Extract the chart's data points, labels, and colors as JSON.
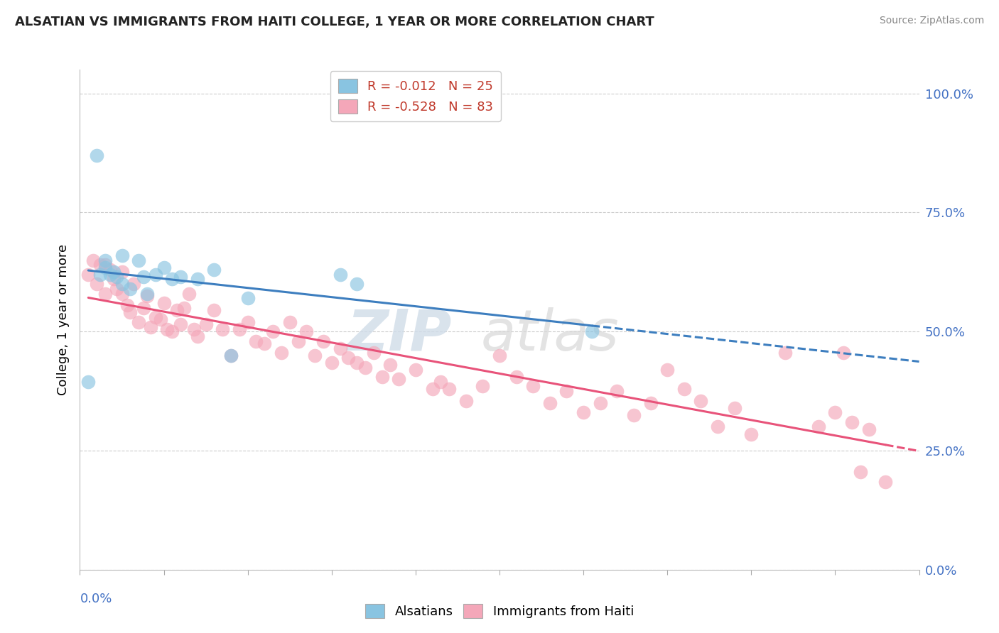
{
  "title": "ALSATIAN VS IMMIGRANTS FROM HAITI COLLEGE, 1 YEAR OR MORE CORRELATION CHART",
  "source": "Source: ZipAtlas.com",
  "ylabel": "College, 1 year or more",
  "right_yticks": [
    0.0,
    0.25,
    0.5,
    0.75,
    1.0
  ],
  "right_yticklabels": [
    "0.0%",
    "25.0%",
    "50.0%",
    "75.0%",
    "100.0%"
  ],
  "xlim": [
    0.0,
    0.5
  ],
  "ylim": [
    0.0,
    1.05
  ],
  "legend_entry1": "R = -0.012   N = 25",
  "legend_entry2": "R = -0.528   N = 83",
  "blue_color": "#89c4e1",
  "pink_color": "#f4a7b9",
  "blue_line_color": "#3d7ebf",
  "pink_line_color": "#e8537a",
  "alsatians_x": [
    0.005,
    0.01,
    0.012,
    0.015,
    0.015,
    0.018,
    0.02,
    0.022,
    0.025,
    0.025,
    0.03,
    0.035,
    0.038,
    0.04,
    0.045,
    0.05,
    0.055,
    0.06,
    0.07,
    0.08,
    0.09,
    0.1,
    0.155,
    0.165,
    0.305
  ],
  "alsatians_y": [
    0.395,
    0.87,
    0.62,
    0.635,
    0.65,
    0.62,
    0.625,
    0.615,
    0.6,
    0.66,
    0.59,
    0.65,
    0.615,
    0.58,
    0.62,
    0.635,
    0.61,
    0.615,
    0.61,
    0.63,
    0.45,
    0.57,
    0.62,
    0.6,
    0.5
  ],
  "haiti_x": [
    0.005,
    0.008,
    0.01,
    0.012,
    0.015,
    0.015,
    0.018,
    0.02,
    0.022,
    0.025,
    0.025,
    0.028,
    0.03,
    0.032,
    0.035,
    0.038,
    0.04,
    0.042,
    0.045,
    0.048,
    0.05,
    0.052,
    0.055,
    0.058,
    0.06,
    0.062,
    0.065,
    0.068,
    0.07,
    0.075,
    0.08,
    0.085,
    0.09,
    0.095,
    0.1,
    0.105,
    0.11,
    0.115,
    0.12,
    0.125,
    0.13,
    0.135,
    0.14,
    0.145,
    0.15,
    0.155,
    0.16,
    0.165,
    0.17,
    0.175,
    0.18,
    0.185,
    0.19,
    0.2,
    0.21,
    0.215,
    0.22,
    0.23,
    0.24,
    0.25,
    0.26,
    0.27,
    0.28,
    0.29,
    0.3,
    0.31,
    0.32,
    0.33,
    0.34,
    0.35,
    0.36,
    0.37,
    0.38,
    0.39,
    0.4,
    0.42,
    0.44,
    0.45,
    0.455,
    0.46,
    0.465,
    0.47,
    0.48
  ],
  "haiti_y": [
    0.62,
    0.65,
    0.6,
    0.64,
    0.58,
    0.64,
    0.63,
    0.61,
    0.59,
    0.625,
    0.58,
    0.555,
    0.54,
    0.6,
    0.52,
    0.55,
    0.575,
    0.51,
    0.53,
    0.525,
    0.56,
    0.505,
    0.5,
    0.545,
    0.515,
    0.55,
    0.58,
    0.505,
    0.49,
    0.515,
    0.545,
    0.505,
    0.45,
    0.505,
    0.52,
    0.48,
    0.475,
    0.5,
    0.455,
    0.52,
    0.48,
    0.5,
    0.45,
    0.48,
    0.435,
    0.465,
    0.445,
    0.435,
    0.425,
    0.455,
    0.405,
    0.43,
    0.4,
    0.42,
    0.38,
    0.395,
    0.38,
    0.355,
    0.385,
    0.45,
    0.405,
    0.385,
    0.35,
    0.375,
    0.33,
    0.35,
    0.375,
    0.325,
    0.35,
    0.42,
    0.38,
    0.355,
    0.3,
    0.34,
    0.285,
    0.455,
    0.3,
    0.33,
    0.455,
    0.31,
    0.205,
    0.295,
    0.185
  ]
}
